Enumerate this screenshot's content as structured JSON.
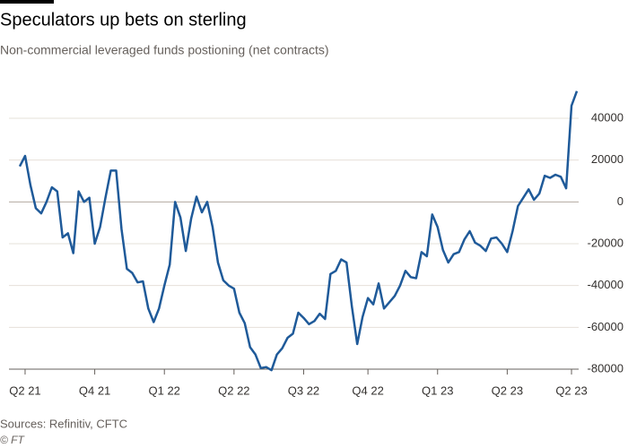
{
  "chart_data": {
    "type": "line",
    "title": "Speculators up bets on sterling",
    "subtitle": "Non-commercial leveraged funds postioning (net contracts)",
    "source": "Sources: Refinitiv, CFTC",
    "credit": "© FT",
    "series": [
      {
        "name": "Net contracts",
        "color": "#1f5a99",
        "values": [
          17000,
          22000,
          8000,
          -3000,
          -5500,
          0,
          7000,
          5000,
          -17000,
          -15000,
          -24500,
          5000,
          0,
          2000,
          -20000,
          -12000,
          2000,
          15000,
          15000,
          -13000,
          -32000,
          -34000,
          -38500,
          -38000,
          -51000,
          -57500,
          -51000,
          -40000,
          -30000,
          0,
          -7500,
          -23500,
          -8000,
          2500,
          -5000,
          0,
          -12000,
          -29000,
          -37500,
          -40000,
          -41500,
          -53000,
          -58000,
          -69500,
          -73000,
          -79500,
          -79000,
          -80500,
          -73000,
          -70000,
          -65000,
          -63000,
          -53000,
          -55500,
          -58500,
          -57000,
          -53500,
          -56000,
          -34500,
          -33000,
          -27500,
          -29000,
          -50000,
          -68000,
          -55000,
          -46000,
          -49000,
          -39000,
          -51000,
          -48000,
          -45000,
          -40000,
          -33000,
          -36000,
          -36500,
          -24000,
          -26000,
          -6000,
          -12000,
          -23000,
          -29000,
          -25000,
          -24000,
          -18000,
          -14000,
          -19500,
          -21000,
          -23500,
          -17500,
          -17000,
          -20000,
          -24000,
          -14000,
          -2000,
          2000,
          6000,
          1000,
          4000,
          12500,
          11500,
          13000,
          12000,
          6500,
          46000,
          53000
        ]
      }
    ],
    "xlim": [
      0,
      104
    ],
    "xticks": [
      {
        "value": 1,
        "label": "Q2 21"
      },
      {
        "value": 14,
        "label": "Q4 21"
      },
      {
        "value": 27,
        "label": "Q1 22"
      },
      {
        "value": 40,
        "label": "Q2 22"
      },
      {
        "value": 53,
        "label": "Q3 22"
      },
      {
        "value": 65,
        "label": "Q4 22"
      },
      {
        "value": 78,
        "label": "Q1 23"
      },
      {
        "value": 91,
        "label": "Q2 23"
      },
      {
        "value": 103,
        "label": "Q2 23"
      }
    ],
    "ylim": [
      -80000,
      55000
    ],
    "yticks": [
      -80000,
      -60000,
      -40000,
      -20000,
      0,
      20000,
      40000
    ],
    "grid": true
  }
}
